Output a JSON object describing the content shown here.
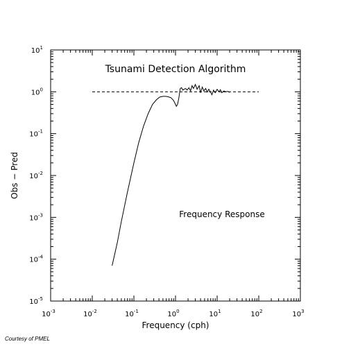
{
  "chart_data": {
    "type": "line",
    "title": "Tsunami Detection Algorithm",
    "annotation": "Frequency Response",
    "xlabel": "Frequency (cph)",
    "ylabel": "Obs − Pred",
    "x_scale": "log",
    "y_scale": "log",
    "xlim": [
      0.001,
      1000
    ],
    "ylim": [
      1e-05,
      10
    ],
    "x_tick_exponents": [
      -3,
      -2,
      -1,
      0,
      1,
      2,
      3
    ],
    "y_tick_exponents": [
      -5,
      -4,
      -3,
      -2,
      -1,
      0,
      1
    ],
    "tick_base": "10",
    "grid": false,
    "series": [
      {
        "style": "solid",
        "x": [
          0.03,
          0.04,
          0.05,
          0.07,
          0.1,
          0.13,
          0.17,
          0.22,
          0.28,
          0.35,
          0.42,
          0.5,
          0.58,
          0.67,
          0.78,
          0.9,
          1.0,
          1.05,
          1.12,
          1.2,
          1.3,
          1.4,
          1.5,
          1.6,
          1.75,
          1.9,
          2.1,
          2.3,
          2.5,
          2.7,
          3.0,
          3.3,
          3.7,
          4.0,
          4.4,
          4.8,
          5.3,
          5.8,
          6.3,
          6.9,
          7.5,
          8.2,
          9.0,
          10.0,
          11.0,
          12.0,
          13.0,
          14.5,
          16.0,
          18.0,
          20.0
        ],
        "y": [
          7e-05,
          0.00025,
          0.0008,
          0.004,
          0.02,
          0.06,
          0.15,
          0.3,
          0.5,
          0.65,
          0.75,
          0.78,
          0.78,
          0.76,
          0.72,
          0.62,
          0.5,
          0.45,
          0.5,
          0.7,
          1.2,
          1.25,
          1.1,
          1.15,
          1.2,
          1.1,
          1.25,
          1.05,
          1.4,
          1.2,
          1.5,
          1.15,
          1.4,
          0.95,
          1.3,
          1.05,
          1.2,
          0.98,
          1.15,
          1.0,
          0.85,
          1.1,
          0.95,
          1.15,
          1.0,
          1.12,
          0.95,
          1.05,
          1.0,
          1.02,
          0.97
        ]
      },
      {
        "style": "dashed",
        "x": [
          0.01,
          100
        ],
        "y": [
          1.0,
          1.0
        ]
      }
    ]
  },
  "credit": "Courtesy of PMEL"
}
